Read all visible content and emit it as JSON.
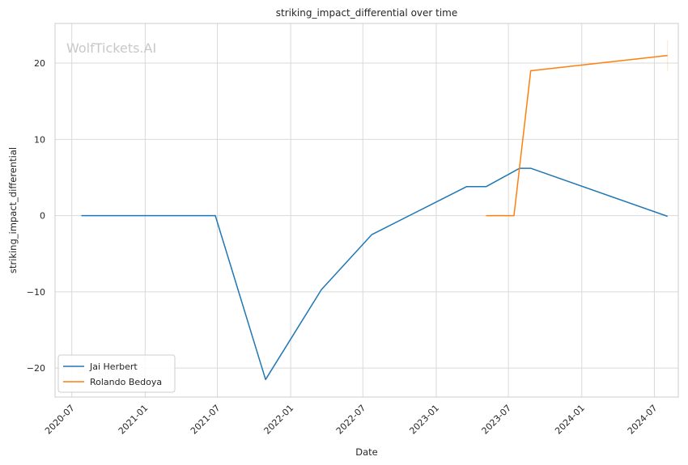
{
  "chart_data": {
    "type": "line",
    "title": "striking_impact_differential over time",
    "xlabel": "Date",
    "ylabel": "striking_impact_differential",
    "watermark": "WolfTickets.AI",
    "xlim": [
      "2020-05-20",
      "2024-08-30"
    ],
    "ylim": [
      -23.8,
      25.2
    ],
    "xticks": [
      "2020-07",
      "2021-01",
      "2021-07",
      "2022-01",
      "2022-07",
      "2023-01",
      "2023-07",
      "2024-01",
      "2024-07"
    ],
    "yticks": [
      -20,
      -10,
      0,
      10,
      20
    ],
    "grid": true,
    "legend_position": "lower-left",
    "series": [
      {
        "name": "Jai Herbert",
        "color": "#1f77b4",
        "x": [
          "2020-07-25",
          "2021-06-26",
          "2021-10-30",
          "2022-03-19",
          "2022-07-23",
          "2023-03-18",
          "2023-05-06",
          "2023-07-29",
          "2023-08-26",
          "2024-08-03"
        ],
        "y": [
          0,
          0,
          -21.5,
          -9.7,
          -2.5,
          3.8,
          3.8,
          6.2,
          6.2,
          -0.1
        ]
      },
      {
        "name": "Rolando Bedoya",
        "color": "#ff7f0e",
        "x": [
          "2023-05-06",
          "2023-07-15",
          "2023-08-26",
          "2024-08-03"
        ],
        "y": [
          0,
          0,
          19.0,
          21.0
        ],
        "error_bar": {
          "x": "2024-08-03",
          "low": 19.0,
          "high": 23.0
        }
      }
    ]
  }
}
